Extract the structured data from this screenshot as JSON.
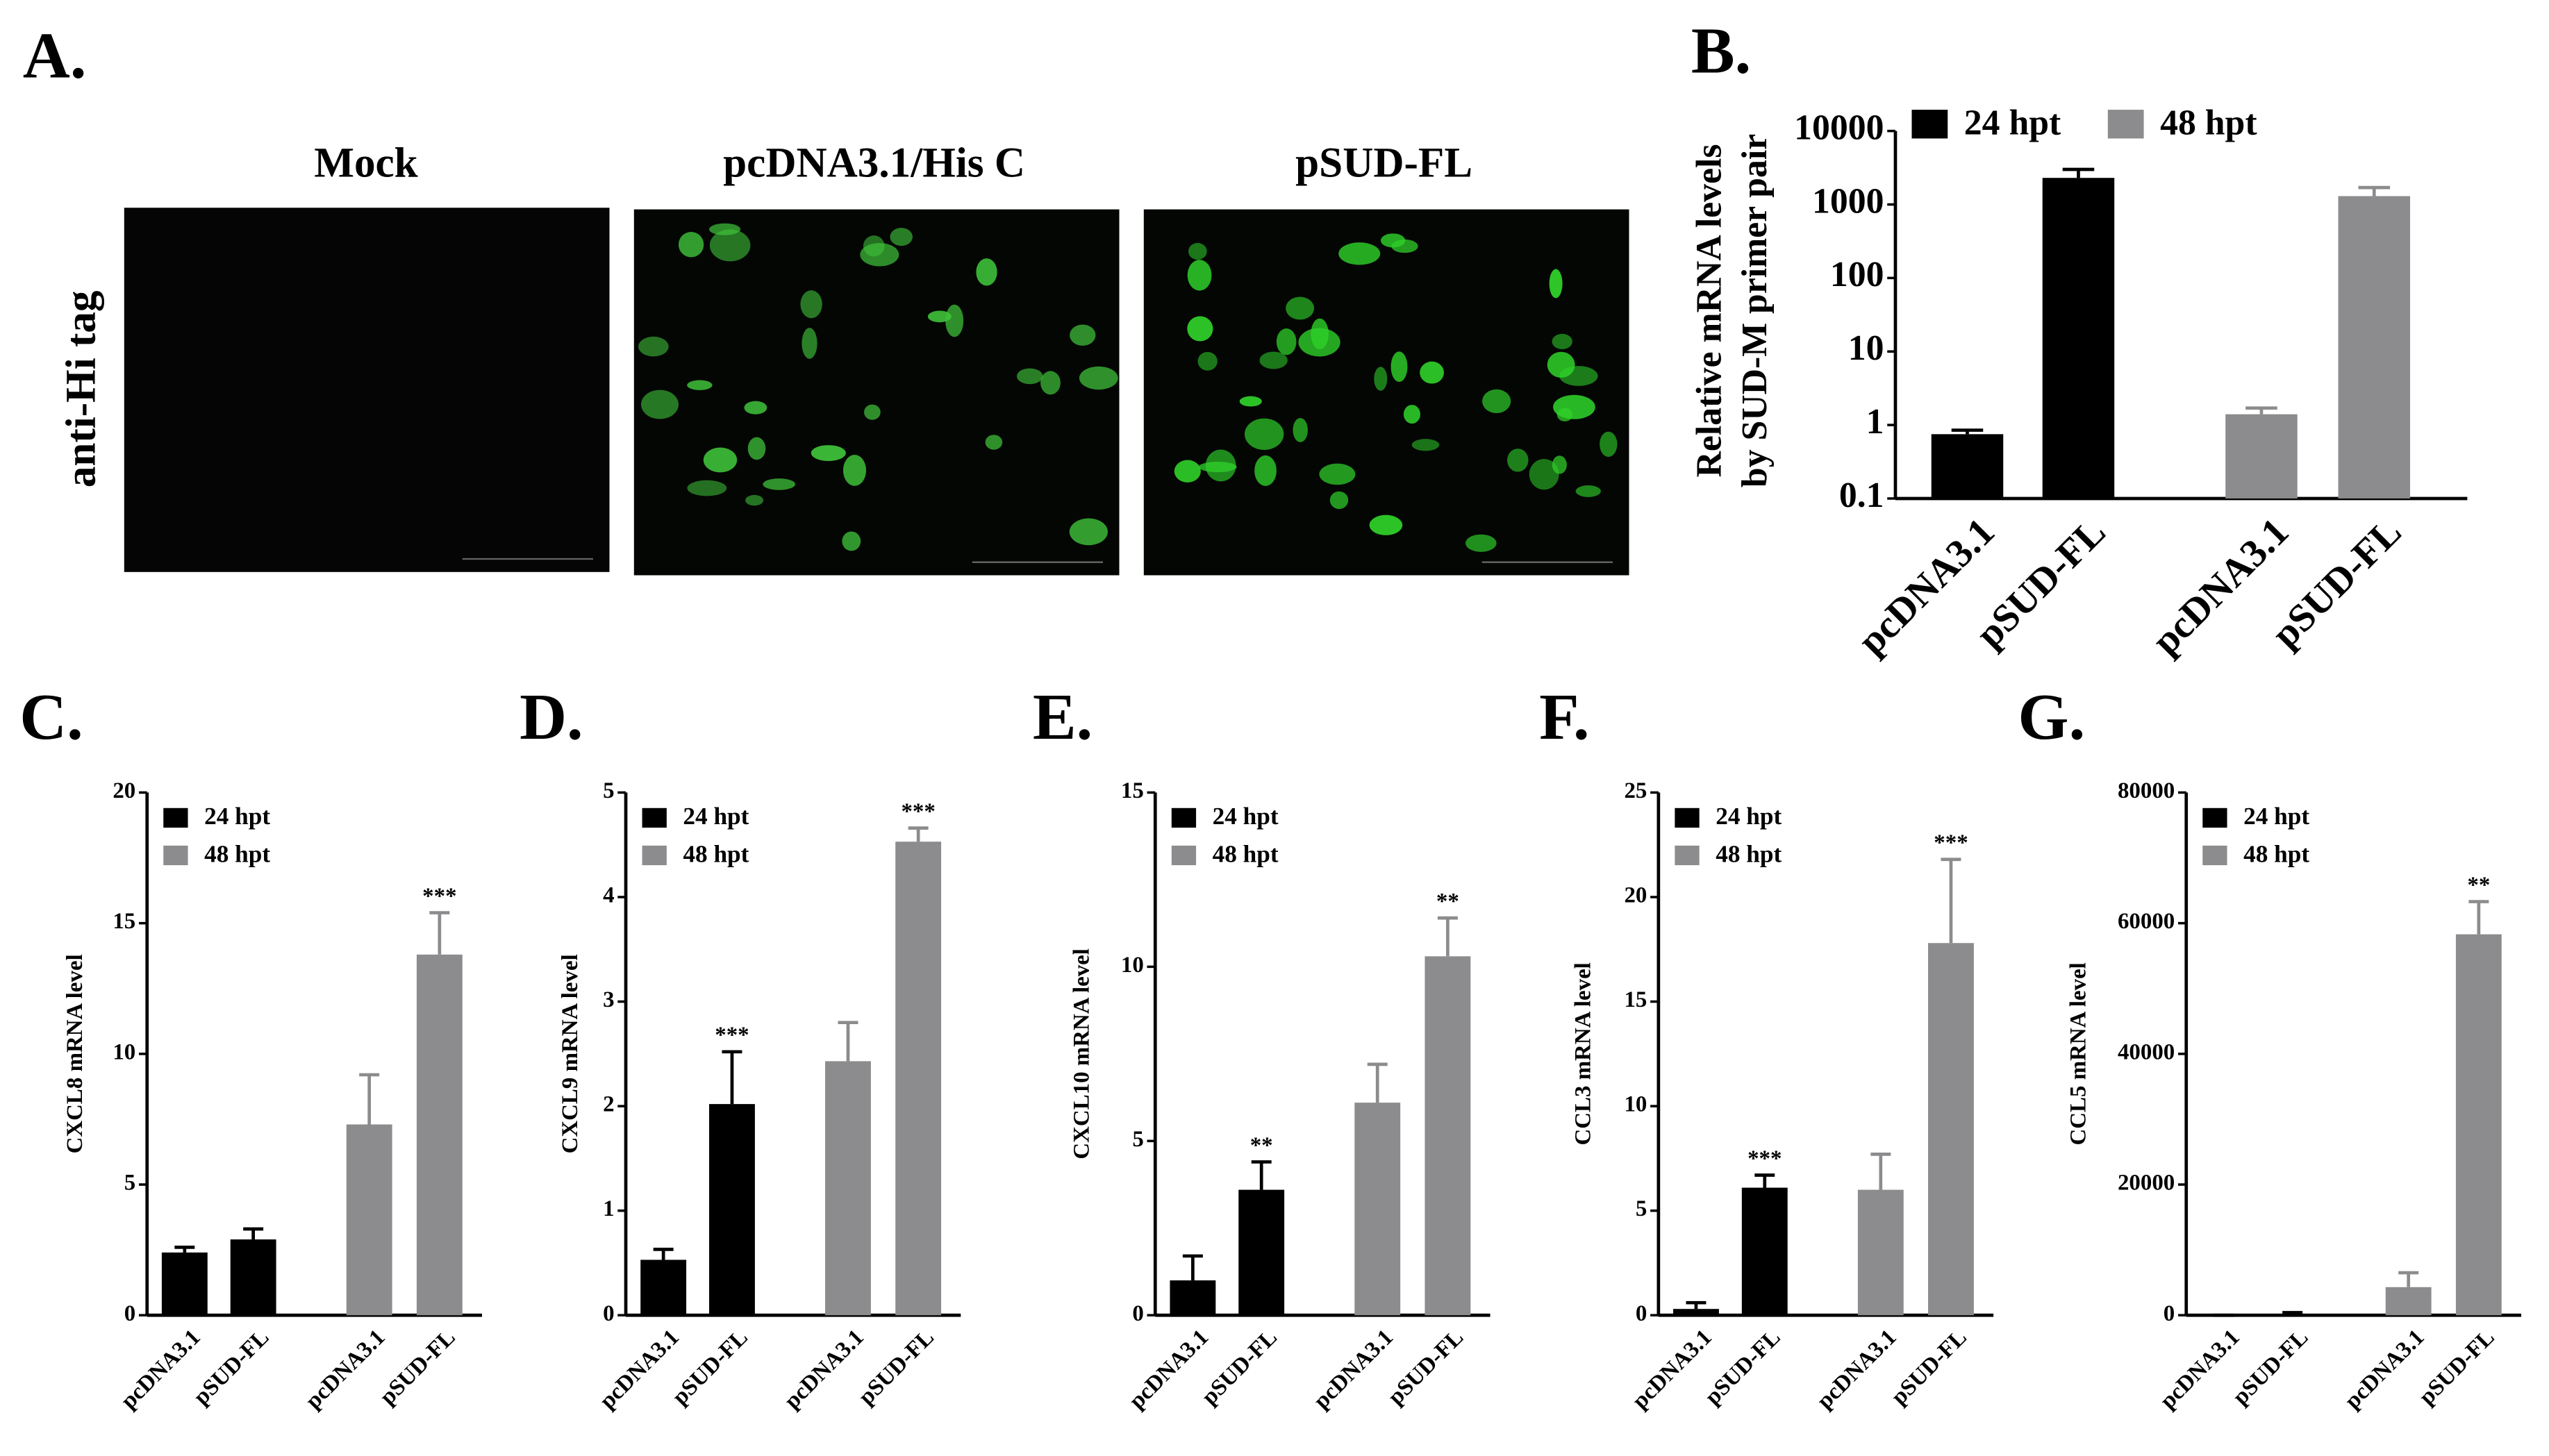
{
  "panel_a": {
    "label": "A.",
    "titles": [
      "Mock",
      "pcDNA3.1/His C",
      "pSUD-FL"
    ],
    "ylabel": "anti-Hi tag"
  },
  "chart_data": [
    {
      "type": "bar",
      "panel_label": "B.",
      "ylabel": [
        "Relative mRNA levels",
        "by SUD-M primer pair"
      ],
      "log": true,
      "ylim": [
        0.1,
        10000
      ],
      "yticks": [
        0.1,
        1,
        10,
        100,
        1000,
        10000
      ],
      "categories": [
        "pcDNA3.1",
        "pSUD-FL",
        "pcDNA3.1",
        "pSUD-FL"
      ],
      "series": [
        {
          "name": "24 hpt",
          "color": "#000000",
          "values": [
            0.75,
            2300,
            null,
            null
          ],
          "errors": [
            0.1,
            700,
            null,
            null
          ]
        },
        {
          "name": "48 hpt",
          "color": "#8c8c8e",
          "values": [
            null,
            null,
            1.4,
            1300
          ],
          "errors": [
            null,
            null,
            0.3,
            400
          ]
        }
      ]
    },
    {
      "type": "bar",
      "panel_label": "C.",
      "ylabel": [
        "CXCL8 mRNA level"
      ],
      "ylim": [
        0,
        20
      ],
      "yticks": [
        0,
        5,
        10,
        15,
        20
      ],
      "categories": [
        "pcDNA3.1",
        "pSUD-FL",
        "pcDNA3.1",
        "pSUD-FL"
      ],
      "series": [
        {
          "name": "24 hpt",
          "color": "#000000",
          "values": [
            2.4,
            2.9,
            null,
            null
          ],
          "errors": [
            0.2,
            0.4,
            null,
            null
          ],
          "labels": [
            null,
            null,
            null,
            null
          ]
        },
        {
          "name": "48 hpt",
          "color": "#8c8c8e",
          "values": [
            null,
            null,
            7.3,
            13.8
          ],
          "errors": [
            null,
            null,
            1.9,
            1.6
          ],
          "labels": [
            null,
            null,
            null,
            "***"
          ]
        }
      ]
    },
    {
      "type": "bar",
      "panel_label": "D.",
      "ylabel": [
        "CXCL9 mRNA level"
      ],
      "ylim": [
        0,
        5
      ],
      "yticks": [
        0,
        1,
        2,
        3,
        4,
        5
      ],
      "categories": [
        "pcDNA3.1",
        "pSUD-FL",
        "pcDNA3.1",
        "pSUD-FL"
      ],
      "series": [
        {
          "name": "24 hpt",
          "color": "#000000",
          "values": [
            0.53,
            2.02,
            null,
            null
          ],
          "errors": [
            0.1,
            0.5,
            null,
            null
          ],
          "labels": [
            null,
            "***",
            null,
            null
          ]
        },
        {
          "name": "48 hpt",
          "color": "#8c8c8e",
          "values": [
            null,
            null,
            2.43,
            4.53
          ],
          "errors": [
            null,
            null,
            0.37,
            0.13
          ],
          "labels": [
            null,
            null,
            null,
            "***"
          ]
        }
      ]
    },
    {
      "type": "bar",
      "panel_label": "E.",
      "ylabel": [
        "CXCL10 mRNA level"
      ],
      "ylim": [
        0,
        15
      ],
      "yticks": [
        0,
        5,
        10,
        15
      ],
      "categories": [
        "pcDNA3.1",
        "pSUD-FL",
        "pcDNA3.1",
        "pSUD-FL"
      ],
      "series": [
        {
          "name": "24 hpt",
          "color": "#000000",
          "values": [
            1.0,
            3.6,
            null,
            null
          ],
          "errors": [
            0.7,
            0.8,
            null,
            null
          ],
          "labels": [
            null,
            "**",
            null,
            null
          ]
        },
        {
          "name": "48 hpt",
          "color": "#8c8c8e",
          "values": [
            null,
            null,
            6.1,
            10.3
          ],
          "errors": [
            null,
            null,
            1.1,
            1.1
          ],
          "labels": [
            null,
            null,
            null,
            "**"
          ]
        }
      ]
    },
    {
      "type": "bar",
      "panel_label": "F.",
      "ylabel": [
        "CCL3 mRNA level"
      ],
      "ylim": [
        0,
        25
      ],
      "yticks": [
        0,
        5,
        10,
        15,
        20,
        25
      ],
      "categories": [
        "pcDNA3.1",
        "pSUD-FL",
        "pcDNA3.1",
        "pSUD-FL"
      ],
      "series": [
        {
          "name": "24 hpt",
          "color": "#000000",
          "values": [
            0.3,
            6.1,
            null,
            null
          ],
          "errors": [
            0.3,
            0.6,
            null,
            null
          ],
          "labels": [
            null,
            "***",
            null,
            null
          ]
        },
        {
          "name": "48 hpt",
          "color": "#8c8c8e",
          "values": [
            null,
            null,
            6.0,
            17.8
          ],
          "errors": [
            null,
            null,
            1.7,
            4
          ],
          "labels": [
            null,
            null,
            null,
            "***"
          ]
        }
      ]
    },
    {
      "type": "bar",
      "panel_label": "G.",
      "ylabel": [
        "CCL5 mRNA level"
      ],
      "ylim": [
        0,
        80000
      ],
      "yticks": [
        0,
        20000,
        40000,
        60000,
        80000
      ],
      "categories": [
        "pcDNA3.1",
        "pSUD-FL",
        "pcDNA3.1",
        "pSUD-FL"
      ],
      "series": [
        {
          "name": "24 hpt",
          "color": "#000000",
          "values": [
            0,
            200,
            null,
            null
          ],
          "errors": [
            0,
            200,
            null,
            null
          ],
          "labels": [
            null,
            null,
            null,
            null
          ]
        },
        {
          "name": "48 hpt",
          "color": "#8c8c8e",
          "values": [
            null,
            null,
            4300,
            58300
          ],
          "errors": [
            null,
            null,
            2200,
            5000
          ],
          "labels": [
            null,
            null,
            null,
            "**"
          ]
        }
      ]
    }
  ]
}
